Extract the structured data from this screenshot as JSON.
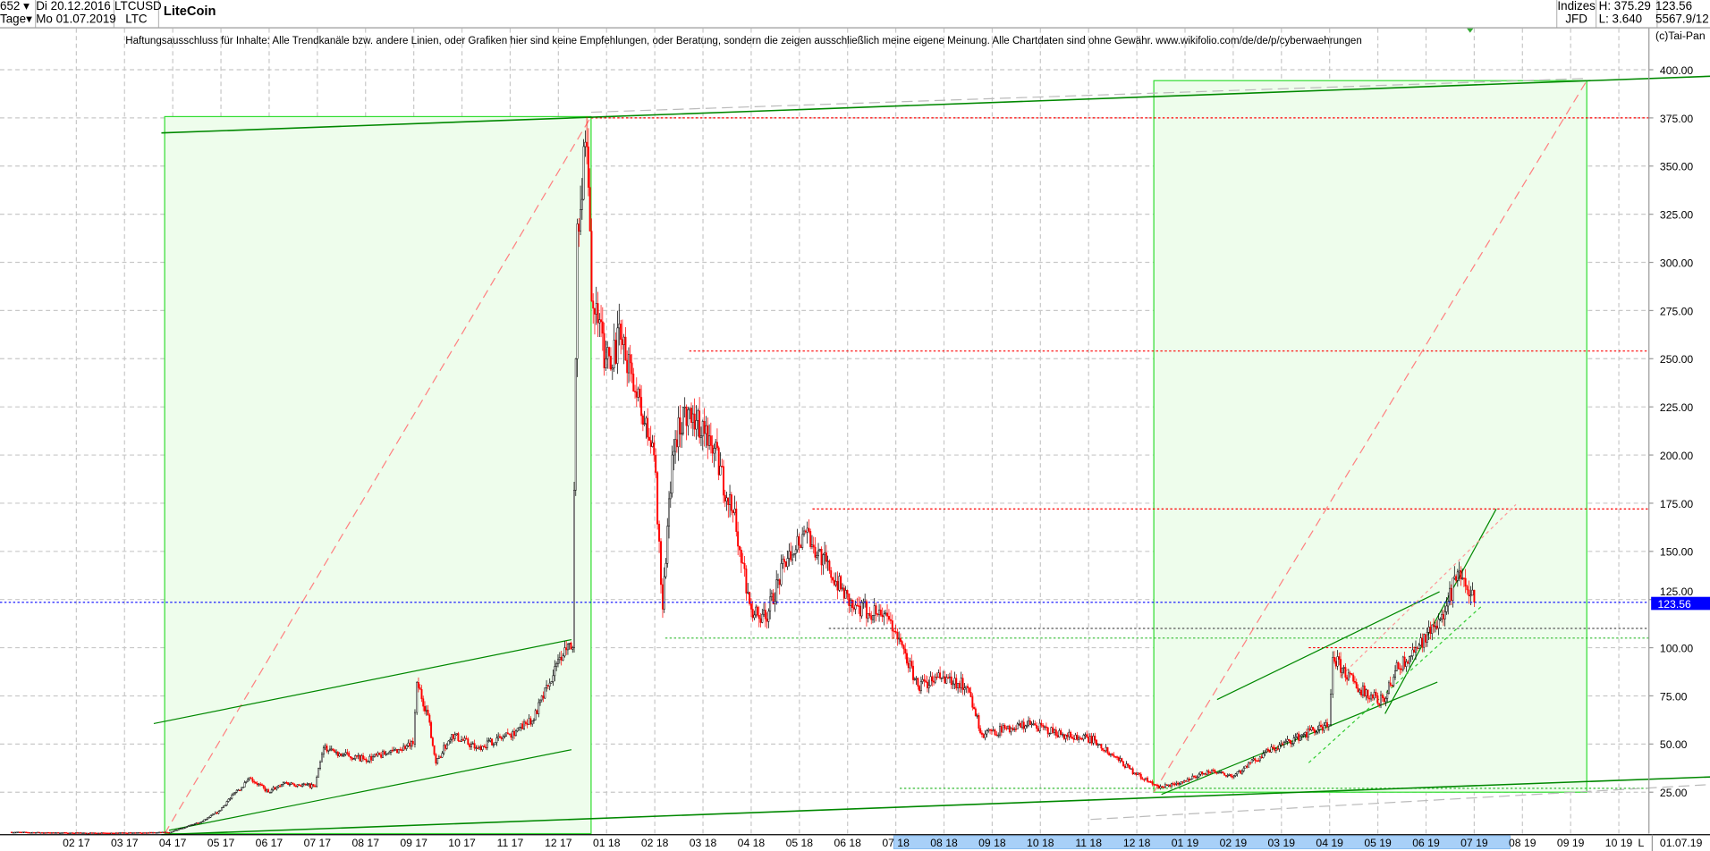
{
  "header": {
    "count": "652",
    "period": "Tage",
    "date_from": "Di 20.12.2016",
    "date_to": "Mo 01.07.2019",
    "symbol": "LTCUSD",
    "symbol_short": "LTC",
    "name": "LiteCoin",
    "group": "Indizes",
    "source": "JFD",
    "high": "H: 375.29",
    "low": "L: 3.640",
    "last": "123.56",
    "info": "5567.9/12"
  },
  "disclaimer": "Haftungsausschluss für Inhalte: Alle Trendkanäle bzw. andere Linien, oder Grafiken hier sind keine Empfehlungen, oder Beratung, sondern die zeigen ausschließlich meine eigene Meinung. Alle Chartdaten sind ohne Gewähr.  www.wikifolio.com/de/de/p/cyberwaehrungen",
  "copyright": "(c)Tai-Pan",
  "footer": {
    "scale_mode": "L",
    "end_date": "01.07.19"
  },
  "chart_data": {
    "type": "candlestick",
    "title": "LiteCoin",
    "ylim": [
      0,
      410
    ],
    "yticks": [
      "25.00",
      "50.00",
      "75.00",
      "100.00",
      "125.00",
      "150.00",
      "175.00",
      "200.00",
      "225.00",
      "250.00",
      "275.00",
      "300.00",
      "325.00",
      "350.00",
      "375.00",
      "400.00"
    ],
    "xticks": [
      "02|17",
      "03|17",
      "04|17",
      "05|17",
      "06|17",
      "07|17",
      "08|17",
      "09|17",
      "10|17",
      "11|17",
      "12|17",
      "01|18",
      "02|18",
      "03|18",
      "04|18",
      "05|18",
      "06|18",
      "07|18",
      "08|18",
      "09|18",
      "10|18",
      "11|18",
      "12|18",
      "01|19",
      "02|19",
      "03|19",
      "04|19",
      "05|19",
      "06|19",
      "07|19",
      "08|19",
      "09|19",
      "10|19"
    ],
    "grid": true,
    "last_price": 123.56,
    "last_label": "123.56",
    "colors": {
      "up": "#000000",
      "down": "#ff0000",
      "box": "#33dd33",
      "box_fill": "#eefdec",
      "trend": "#008800",
      "resistance": "#ff0000",
      "last": "#0000ff"
    },
    "closes": [
      [
        "2016-12-20",
        4.3
      ],
      [
        "2017-01-15",
        4.0
      ],
      [
        "2017-02-15",
        3.8
      ],
      [
        "2017-03-15",
        4.0
      ],
      [
        "2017-03-30",
        4.2
      ],
      [
        "2017-04-05",
        6
      ],
      [
        "2017-04-20",
        10
      ],
      [
        "2017-04-30",
        15
      ],
      [
        "2017-05-10",
        25
      ],
      [
        "2017-05-20",
        32
      ],
      [
        "2017-05-31",
        25
      ],
      [
        "2017-06-10",
        30
      ],
      [
        "2017-06-30",
        28
      ],
      [
        "2017-07-05",
        48
      ],
      [
        "2017-07-15",
        45
      ],
      [
        "2017-07-31",
        42
      ],
      [
        "2017-08-15",
        45
      ],
      [
        "2017-08-31",
        50
      ],
      [
        "2017-09-03",
        82
      ],
      [
        "2017-09-10",
        65
      ],
      [
        "2017-09-15",
        40
      ],
      [
        "2017-09-25",
        55
      ],
      [
        "2017-10-10",
        48
      ],
      [
        "2017-10-31",
        55
      ],
      [
        "2017-11-15",
        62
      ],
      [
        "2017-11-25",
        80
      ],
      [
        "2017-12-05",
        100
      ],
      [
        "2017-12-10",
        100
      ],
      [
        "2017-12-12",
        250
      ],
      [
        "2017-12-13",
        320
      ],
      [
        "2017-12-19",
        360
      ],
      [
        "2017-12-22",
        280
      ],
      [
        "2017-12-31",
        250
      ],
      [
        "2018-01-10",
        260
      ],
      [
        "2018-01-20",
        230
      ],
      [
        "2018-01-31",
        200
      ],
      [
        "2018-02-06",
        120
      ],
      [
        "2018-02-12",
        200
      ],
      [
        "2018-02-20",
        225
      ],
      [
        "2018-03-05",
        210
      ],
      [
        "2018-03-20",
        170
      ],
      [
        "2018-04-01",
        120
      ],
      [
        "2018-04-10",
        115
      ],
      [
        "2018-04-25",
        150
      ],
      [
        "2018-05-05",
        160
      ],
      [
        "2018-05-20",
        140
      ],
      [
        "2018-06-05",
        120
      ],
      [
        "2018-06-25",
        118
      ],
      [
        "2018-07-01",
        108
      ],
      [
        "2018-07-15",
        80
      ],
      [
        "2018-07-31",
        85
      ],
      [
        "2018-08-15",
        80
      ],
      [
        "2018-08-25",
        55
      ],
      [
        "2018-09-10",
        58
      ],
      [
        "2018-09-25",
        60
      ],
      [
        "2018-10-15",
        55
      ],
      [
        "2018-11-05",
        52
      ],
      [
        "2018-11-15",
        45
      ],
      [
        "2018-11-30",
        35
      ],
      [
        "2018-12-15",
        27
      ],
      [
        "2018-12-31",
        31
      ],
      [
        "2019-01-15",
        36
      ],
      [
        "2019-01-31",
        33
      ],
      [
        "2019-02-20",
        45
      ],
      [
        "2019-03-15",
        55
      ],
      [
        "2019-03-31",
        60
      ],
      [
        "2019-04-03",
        95
      ],
      [
        "2019-04-20",
        78
      ],
      [
        "2019-05-05",
        72
      ],
      [
        "2019-05-12",
        88
      ],
      [
        "2019-05-25",
        100
      ],
      [
        "2019-06-10",
        115
      ],
      [
        "2019-06-22",
        140
      ],
      [
        "2019-06-27",
        130
      ],
      [
        "2019-07-01",
        123.56
      ]
    ],
    "horizontal_levels": [
      375,
      254,
      172,
      105,
      123.56
    ]
  }
}
